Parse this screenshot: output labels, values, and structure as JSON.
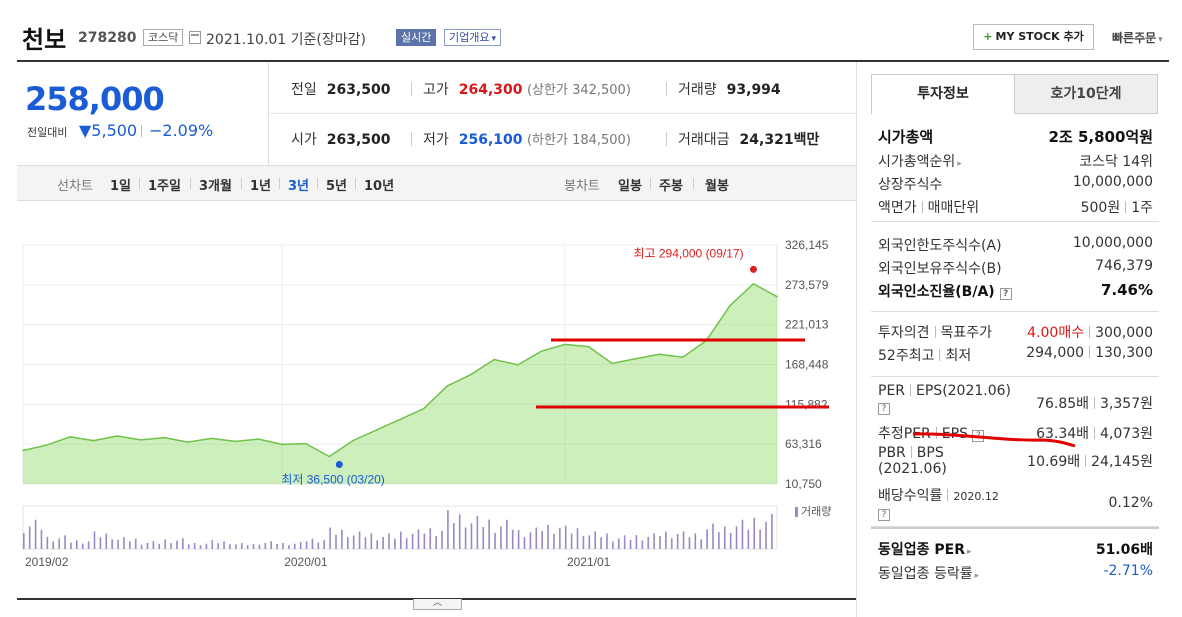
{
  "header": {
    "name": "천보",
    "code": "278280",
    "market": "코스닥",
    "date": "2021.10.01  기준(장마감)",
    "realtime": "실시간",
    "overview": "기업개요",
    "mystock": "MY STOCK 추가",
    "quick_order": "빠른주문"
  },
  "price": {
    "now": "258,000",
    "prev_label": "전일대비",
    "change": "▼5,500",
    "pct": "−2.09%"
  },
  "stats": {
    "prev_close_lbl": "전일",
    "prev_close": "263,500",
    "high_lbl": "고가",
    "high": "264,300",
    "upper_lbl": "(상한가 342,500)",
    "volume_lbl": "거래량",
    "volume": "93,994",
    "open_lbl": "시가",
    "open": "263,500",
    "low_lbl": "저가",
    "low": "256,100",
    "lower_lbl": "(하한가 184,500)",
    "amount_lbl": "거래대금",
    "amount": "24,321",
    "amount_unit": "백만"
  },
  "periodbar": {
    "line_label": "선차트",
    "periods": [
      "1일",
      "1주일",
      "3개월",
      "1년",
      "3년",
      "5년",
      "10년"
    ],
    "active": "3년",
    "candle_label": "봉차트",
    "candles": [
      "일봉",
      "주봉",
      "월봉"
    ]
  },
  "chart_data": {
    "type": "area",
    "x": [
      "2019/02",
      "2019/03",
      "2019/04",
      "2019/05",
      "2019/06",
      "2019/07",
      "2019/08",
      "2019/09",
      "2019/10",
      "2019/11",
      "2019/12",
      "2020/01",
      "2020/02",
      "2020/03",
      "2020/04",
      "2020/05",
      "2020/06",
      "2020/07",
      "2020/08",
      "2020/09",
      "2020/10",
      "2020/11",
      "2020/12",
      "2021/01",
      "2021/02",
      "2021/03",
      "2021/04",
      "2021/05",
      "2021/06",
      "2021/07",
      "2021/08",
      "2021/09",
      "2021/10"
    ],
    "series": [
      {
        "values": [
          55000,
          62000,
          73000,
          68000,
          74000,
          69000,
          72000,
          66000,
          71000,
          67000,
          70000,
          63000,
          64000,
          47000,
          68000,
          82000,
          96000,
          110000,
          140000,
          155000,
          175000,
          168000,
          186000,
          195000,
          192000,
          170000,
          176000,
          182000,
          178000,
          200000,
          246000,
          275000,
          258000
        ]
      }
    ],
    "ylim": [
      10750,
      326145
    ],
    "y_ticks": [
      "326,145",
      "273,579",
      "221,013",
      "168,448",
      "115,882",
      "63,316",
      "10,750"
    ],
    "x_ticks": [
      "2019/02",
      "2020/01",
      "2021/01"
    ],
    "max_label": "최고 294,000 (09/17)",
    "min_label": "최저 36,500 (03/20)",
    "volume_legend": "거래량",
    "volume": [
      30,
      14,
      10,
      18,
      12,
      8,
      11,
      7,
      9,
      6,
      8,
      7,
      12,
      22,
      18,
      16,
      20,
      24,
      40,
      34,
      30,
      22,
      28,
      24,
      18,
      14,
      16,
      20,
      18,
      26,
      30,
      36,
      20
    ],
    "area_color": "#8fdc6a",
    "line_color": "#6fc24a",
    "volume_color": "#9988c4"
  },
  "panel": {
    "tab_invest": "투자정보",
    "tab_hoga": "호가10단계",
    "mcap_lbl": "시가총액",
    "mcap": "2조 5,800억원",
    "mcap_rank_lbl": "시가총액순위",
    "mcap_rank": "코스닥 14위",
    "shares_lbl": "상장주식수",
    "shares": "10,000,000",
    "par_lbl": "액면가",
    "unit_lbl": "매매단위",
    "par": "500원",
    "unit": "1주",
    "foreign_limit_lbl": "외국인한도주식수(A)",
    "foreign_limit": "10,000,000",
    "foreign_hold_lbl": "외국인보유주식수(B)",
    "foreign_hold": "746,379",
    "foreign_ratio_lbl": "외국인소진율(B/A)",
    "foreign_ratio": "7.46%",
    "opinion_lbl": "투자의견",
    "target_lbl": "목표주가",
    "opinion": "4.00매수",
    "target": "300,000",
    "w52_lbl": "52주최고",
    "w52_low_lbl": "최저",
    "w52_high": "294,000",
    "w52_low": "130,300",
    "per_lbl": "PER",
    "eps_lbl": "EPS(2021.06)",
    "per": "76.85배",
    "eps": "3,357원",
    "est_per_lbl": "추정PER",
    "est_eps_lbl": "EPS",
    "est_per": "63.34배",
    "est_eps": "4,073원",
    "pbr_lbl": "PBR",
    "bps_lbl": "BPS",
    "bps_date": "(2021.06)",
    "pbr": "10.69배",
    "bps": "24,145원",
    "div_lbl": "배당수익률",
    "div_date": "2020.12",
    "div": "0.12%",
    "sector_per_lbl": "동일업종 PER",
    "sector_per": "51.06배",
    "sector_chg_lbl": "동일업종 등락률",
    "sector_chg": "-2.71%"
  }
}
